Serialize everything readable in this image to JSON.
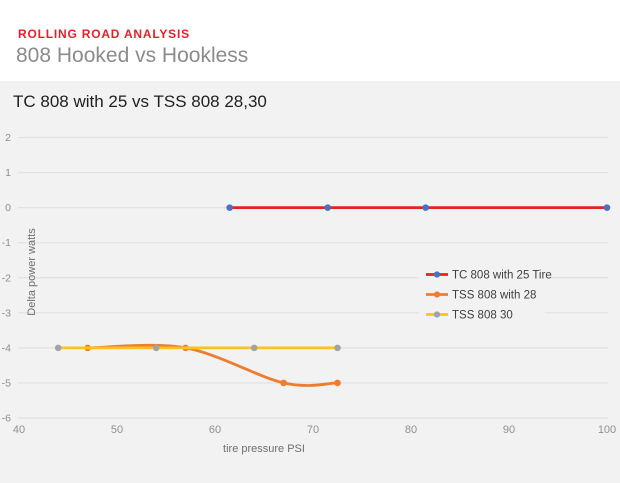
{
  "header": {
    "eyebrow": "ROLLING ROAD ANALYSIS",
    "title": "808 Hooked vs Hookless"
  },
  "colors": {
    "eyebrow_red": "#e81e28",
    "page_title_gray": "#8b8b8b",
    "panel_bg": "#f2f2f2",
    "gridline": "#e2e2e2",
    "tick_text": "#8f8f8f",
    "axis_title_text": "#6f6f6f",
    "legend_text": "#3f3f3f",
    "series_red": "#e8231f",
    "series_red_marker": "#4472c4",
    "series_orange": "#ed7d31",
    "series_gold": "#ffc022",
    "series_gold_marker": "#a3a3a3"
  },
  "chart_data": {
    "type": "line",
    "title": "TC 808 with 25 vs TSS 808 28,30",
    "xlabel": "tire pressure PSI",
    "ylabel": "Delta power watts",
    "xlim": [
      40,
      100
    ],
    "ylim": [
      -6,
      2
    ],
    "x_ticks": [
      40,
      50,
      60,
      70,
      80,
      90,
      100
    ],
    "y_ticks": [
      2,
      1,
      0,
      -1,
      -2,
      -3,
      -4,
      -5,
      -6
    ],
    "grid": "horizontal-only",
    "legend_position": "middle-right",
    "series": [
      {
        "name": "TC 808 with 25 Tire",
        "x": [
          61.5,
          71.5,
          81.5,
          100
        ],
        "y": [
          0,
          0,
          0,
          0
        ],
        "line_color": "#e8231f",
        "marker_color": "#4472c4",
        "smooth": false
      },
      {
        "name": "TSS 808 with 28",
        "x": [
          47,
          57,
          67,
          72.5
        ],
        "y": [
          -4,
          -4,
          -5,
          -5
        ],
        "line_color": "#ed7d31",
        "marker_color": "#ed7d31",
        "smooth": true
      },
      {
        "name": "TSS 808 30",
        "x": [
          44,
          54,
          64,
          72.5
        ],
        "y": [
          -4,
          -4,
          -4,
          -4
        ],
        "line_color": "#ffc022",
        "marker_color": "#a3a3a3",
        "smooth": false
      }
    ]
  }
}
